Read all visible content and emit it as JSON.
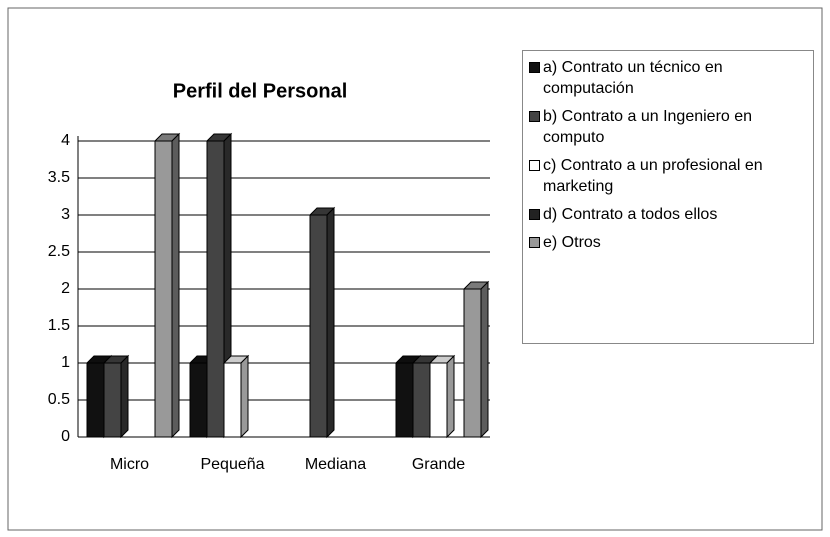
{
  "chart_data": {
    "type": "bar",
    "title": "Perfil del Personal",
    "categories": [
      "Micro",
      "Pequeña",
      "Mediana",
      "Grande"
    ],
    "series": [
      {
        "name": "a) Contrato un técnico en computación",
        "color": "#111111",
        "values": [
          1,
          1,
          0,
          1
        ]
      },
      {
        "name": "b) Contrato a un Ingeniero en computo",
        "color": "#444444",
        "values": [
          1,
          4,
          3,
          1
        ]
      },
      {
        "name": "c) Contrato a un profesional en marketing",
        "color": "#ffffff",
        "values": [
          0,
          1,
          0,
          1
        ]
      },
      {
        "name": "d) Contrato a todos ellos",
        "color": "#222222",
        "values": [
          0,
          0,
          0,
          0
        ]
      },
      {
        "name": "e) Otros",
        "color": "#999999",
        "values": [
          4,
          0,
          0,
          2
        ]
      }
    ],
    "ylim": [
      0,
      4
    ],
    "yticks": [
      0,
      0.5,
      1,
      1.5,
      2,
      2.5,
      3,
      3.5,
      4
    ],
    "grid": true,
    "legend": "right"
  }
}
